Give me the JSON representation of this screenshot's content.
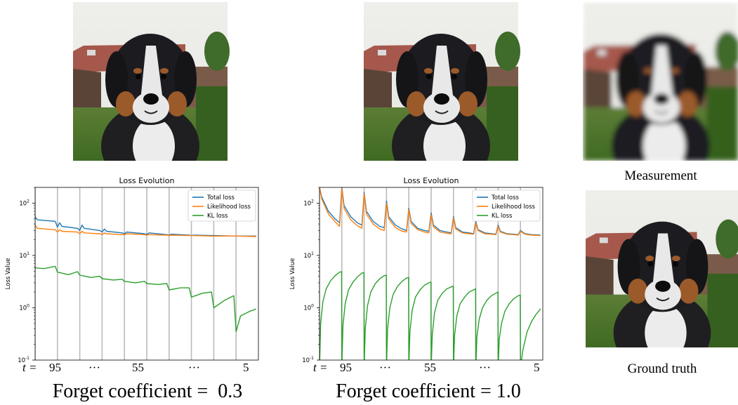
{
  "captions": {
    "measurement": "Measurement",
    "ground_truth": "Ground truth",
    "left_coeff": "Forget coefficient =  0.3",
    "right_coeff": "Forget coefficient = 1.0"
  },
  "t_axis": {
    "prefix": "t =",
    "labels": [
      "95",
      "···",
      "55",
      "···",
      "5"
    ]
  },
  "images": [
    {
      "name": "reconstruction-forget-0.3"
    },
    {
      "name": "reconstruction-forget-1.0"
    },
    {
      "name": "measurement-image"
    },
    {
      "name": "ground-truth-image"
    }
  ],
  "colors": {
    "total": "#1f77b4",
    "likelihood": "#ff7f0e",
    "kl": "#2ca02c",
    "vline": "#bbbbbb"
  },
  "chart_data": [
    {
      "type": "line",
      "title": "Loss Evolution",
      "ylabel": "Loss Value",
      "yscale": "log",
      "ylim": [
        0.1,
        200
      ],
      "xlim": [
        0,
        100
      ],
      "yticks": [
        "10^{-1}",
        "10^{0}",
        "10^{1}",
        "10^{2}"
      ],
      "legend_position": "top-right",
      "vlines": [
        0,
        10,
        20,
        30,
        40,
        50,
        60,
        70,
        80,
        90
      ],
      "series": [
        {
          "name": "Total loss",
          "color": "#1f77b4",
          "points": [
            [
              0,
              55
            ],
            [
              1,
              48
            ],
            [
              9,
              45
            ],
            [
              10,
              35
            ],
            [
              11,
              42
            ],
            [
              12,
              36
            ],
            [
              19,
              33
            ],
            [
              20,
              30
            ],
            [
              21,
              38
            ],
            [
              22,
              33
            ],
            [
              29,
              30
            ],
            [
              30,
              28
            ],
            [
              31,
              32
            ],
            [
              32,
              29
            ],
            [
              39,
              27
            ],
            [
              40,
              26
            ],
            [
              41,
              28
            ],
            [
              49,
              26
            ],
            [
              50,
              25
            ],
            [
              51,
              27
            ],
            [
              59,
              25
            ],
            [
              60,
              24.5
            ],
            [
              61,
              25.5
            ],
            [
              69,
              24.5
            ],
            [
              70,
              24
            ],
            [
              71,
              24.5
            ],
            [
              79,
              24
            ],
            [
              80,
              24
            ],
            [
              89,
              23.5
            ],
            [
              90,
              23.5
            ],
            [
              99,
              23.5
            ]
          ]
        },
        {
          "name": "Likelihood loss",
          "color": "#ff7f0e",
          "points": [
            [
              0,
              38
            ],
            [
              1,
              33
            ],
            [
              9,
              31
            ],
            [
              10,
              28
            ],
            [
              11,
              31
            ],
            [
              12,
              29
            ],
            [
              19,
              28
            ],
            [
              20,
              26
            ],
            [
              21,
              29
            ],
            [
              22,
              27
            ],
            [
              29,
              26
            ],
            [
              30,
              25
            ],
            [
              31,
              27
            ],
            [
              32,
              26
            ],
            [
              39,
              25
            ],
            [
              40,
              25
            ],
            [
              41,
              26
            ],
            [
              49,
              25
            ],
            [
              50,
              24.5
            ],
            [
              51,
              25
            ],
            [
              59,
              24.5
            ],
            [
              60,
              24
            ],
            [
              61,
              24.5
            ],
            [
              69,
              24
            ],
            [
              70,
              24
            ],
            [
              71,
              24
            ],
            [
              79,
              23.5
            ],
            [
              80,
              23.5
            ],
            [
              89,
              23.5
            ],
            [
              90,
              23.5
            ],
            [
              99,
              23
            ]
          ]
        },
        {
          "name": "KL loss",
          "color": "#2ca02c",
          "points": [
            [
              0,
              5.8
            ],
            [
              4,
              5.6
            ],
            [
              9,
              6.2
            ],
            [
              10,
              4.8
            ],
            [
              15,
              4.3
            ],
            [
              19,
              4.9
            ],
            [
              20,
              4.2
            ],
            [
              25,
              3.8
            ],
            [
              29,
              4.0
            ],
            [
              30,
              3.6
            ],
            [
              35,
              3.4
            ],
            [
              39,
              3.5
            ],
            [
              40,
              3.2
            ],
            [
              45,
              3.0
            ],
            [
              49,
              3.2
            ],
            [
              50,
              2.9
            ],
            [
              55,
              2.8
            ],
            [
              59,
              2.9
            ],
            [
              60,
              2.2
            ],
            [
              65,
              2.4
            ],
            [
              69,
              2.4
            ],
            [
              70,
              1.6
            ],
            [
              75,
              1.9
            ],
            [
              79,
              2.0
            ],
            [
              80,
              1.0
            ],
            [
              85,
              1.4
            ],
            [
              89,
              1.7
            ],
            [
              90,
              0.35
            ],
            [
              92,
              0.7
            ],
            [
              96,
              0.85
            ],
            [
              99,
              0.95
            ]
          ]
        }
      ]
    },
    {
      "type": "line",
      "title": "Loss Evolution",
      "ylabel": "Loss Value",
      "yscale": "log",
      "ylim": [
        0.1,
        200
      ],
      "xlim": [
        0,
        100
      ],
      "yticks": [
        "10^{-1}",
        "10^{0}",
        "10^{1}",
        "10^{2}"
      ],
      "legend_position": "top-right",
      "vlines": [
        0,
        10,
        20,
        30,
        40,
        50,
        60,
        70,
        80,
        90
      ],
      "series": [
        {
          "name": "Total loss",
          "color": "#1f77b4",
          "points": [
            [
              0,
              200
            ],
            [
              1,
              130
            ],
            [
              4,
              70
            ],
            [
              7,
              50
            ],
            [
              9,
              42
            ],
            [
              10,
              200
            ],
            [
              11,
              90
            ],
            [
              14,
              55
            ],
            [
              17,
              42
            ],
            [
              19,
              38
            ],
            [
              20,
              160
            ],
            [
              21,
              70
            ],
            [
              24,
              45
            ],
            [
              27,
              36
            ],
            [
              29,
              34
            ],
            [
              30,
              110
            ],
            [
              31,
              55
            ],
            [
              34,
              38
            ],
            [
              37,
              32
            ],
            [
              39,
              30
            ],
            [
              40,
              80
            ],
            [
              41,
              45
            ],
            [
              44,
              33
            ],
            [
              47,
              30
            ],
            [
              49,
              29
            ],
            [
              50,
              65
            ],
            [
              51,
              38
            ],
            [
              54,
              30
            ],
            [
              57,
              28
            ],
            [
              59,
              27
            ],
            [
              60,
              55
            ],
            [
              61,
              34
            ],
            [
              64,
              28
            ],
            [
              67,
              27
            ],
            [
              69,
              26
            ],
            [
              70,
              45
            ],
            [
              71,
              31
            ],
            [
              74,
              27
            ],
            [
              77,
              26
            ],
            [
              79,
              25.5
            ],
            [
              80,
              38
            ],
            [
              81,
              29
            ],
            [
              84,
              26
            ],
            [
              87,
              25.5
            ],
            [
              89,
              25
            ],
            [
              90,
              30
            ],
            [
              92,
              26
            ],
            [
              95,
              25
            ],
            [
              99,
              24.5
            ]
          ]
        },
        {
          "name": "Likelihood loss",
          "color": "#ff7f0e",
          "points": [
            [
              0,
              200
            ],
            [
              1,
              120
            ],
            [
              4,
              62
            ],
            [
              7,
              44
            ],
            [
              9,
              36
            ],
            [
              10,
              190
            ],
            [
              11,
              80
            ],
            [
              14,
              48
            ],
            [
              17,
              37
            ],
            [
              19,
              33
            ],
            [
              20,
              150
            ],
            [
              21,
              62
            ],
            [
              24,
              40
            ],
            [
              27,
              32
            ],
            [
              29,
              30
            ],
            [
              30,
              100
            ],
            [
              31,
              50
            ],
            [
              34,
              34
            ],
            [
              37,
              29
            ],
            [
              39,
              28
            ],
            [
              40,
              75
            ],
            [
              41,
              41
            ],
            [
              44,
              31
            ],
            [
              47,
              28
            ],
            [
              49,
              27
            ],
            [
              50,
              60
            ],
            [
              51,
              35
            ],
            [
              54,
              28
            ],
            [
              57,
              26.5
            ],
            [
              59,
              26
            ],
            [
              60,
              52
            ],
            [
              61,
              32
            ],
            [
              64,
              27
            ],
            [
              67,
              26
            ],
            [
              69,
              25.5
            ],
            [
              70,
              42
            ],
            [
              71,
              30
            ],
            [
              74,
              26
            ],
            [
              77,
              25.5
            ],
            [
              79,
              25
            ],
            [
              80,
              36
            ],
            [
              81,
              28
            ],
            [
              84,
              25.5
            ],
            [
              87,
              25
            ],
            [
              89,
              24.5
            ],
            [
              90,
              29
            ],
            [
              92,
              25.5
            ],
            [
              95,
              24.5
            ],
            [
              99,
              24
            ]
          ]
        },
        {
          "name": "KL loss",
          "color": "#2ca02c",
          "points": [
            [
              0,
              0.07
            ],
            [
              0.5,
              0.5
            ],
            [
              1.5,
              1.3
            ],
            [
              3,
              2.3
            ],
            [
              5,
              3.3
            ],
            [
              7,
              4.1
            ],
            [
              9,
              4.8
            ],
            [
              9.9,
              4.9
            ],
            [
              10,
              0.07
            ],
            [
              10.5,
              0.45
            ],
            [
              11.5,
              1.2
            ],
            [
              13,
              2.2
            ],
            [
              15,
              3.1
            ],
            [
              17,
              3.9
            ],
            [
              19,
              4.6
            ],
            [
              19.9,
              4.7
            ],
            [
              20,
              0.07
            ],
            [
              20.5,
              0.4
            ],
            [
              21.5,
              1.1
            ],
            [
              23,
              2.0
            ],
            [
              25,
              2.9
            ],
            [
              27,
              3.6
            ],
            [
              29,
              4.1
            ],
            [
              29.9,
              4.2
            ],
            [
              30,
              0.07
            ],
            [
              30.5,
              0.4
            ],
            [
              31.5,
              1.0
            ],
            [
              33,
              1.8
            ],
            [
              35,
              2.6
            ],
            [
              37,
              3.2
            ],
            [
              39,
              3.7
            ],
            [
              39.9,
              3.8
            ],
            [
              40,
              0.07
            ],
            [
              40.5,
              0.35
            ],
            [
              41.5,
              0.9
            ],
            [
              43,
              1.6
            ],
            [
              45,
              2.2
            ],
            [
              47,
              2.7
            ],
            [
              49,
              3.0
            ],
            [
              49.9,
              3.1
            ],
            [
              50,
              0.07
            ],
            [
              50.5,
              0.3
            ],
            [
              51.5,
              0.8
            ],
            [
              53,
              1.4
            ],
            [
              55,
              1.9
            ],
            [
              57,
              2.3
            ],
            [
              59,
              2.5
            ],
            [
              59.9,
              2.6
            ],
            [
              60,
              0.07
            ],
            [
              60.5,
              0.3
            ],
            [
              61.5,
              0.7
            ],
            [
              63,
              1.2
            ],
            [
              65,
              1.6
            ],
            [
              67,
              2.0
            ],
            [
              69,
              2.2
            ],
            [
              69.9,
              2.3
            ],
            [
              70,
              0.07
            ],
            [
              70.5,
              0.28
            ],
            [
              71.5,
              0.6
            ],
            [
              73,
              1.0
            ],
            [
              75,
              1.4
            ],
            [
              77,
              1.7
            ],
            [
              79,
              1.9
            ],
            [
              79.9,
              2.0
            ],
            [
              80,
              0.07
            ],
            [
              80.5,
              0.25
            ],
            [
              81.5,
              0.5
            ],
            [
              83,
              0.85
            ],
            [
              85,
              1.2
            ],
            [
              87,
              1.5
            ],
            [
              89,
              1.7
            ],
            [
              89.9,
              1.75
            ],
            [
              90,
              0.07
            ],
            [
              91,
              0.15
            ],
            [
              93,
              0.35
            ],
            [
              95,
              0.55
            ],
            [
              97,
              0.75
            ],
            [
              99,
              0.95
            ]
          ]
        }
      ]
    }
  ]
}
